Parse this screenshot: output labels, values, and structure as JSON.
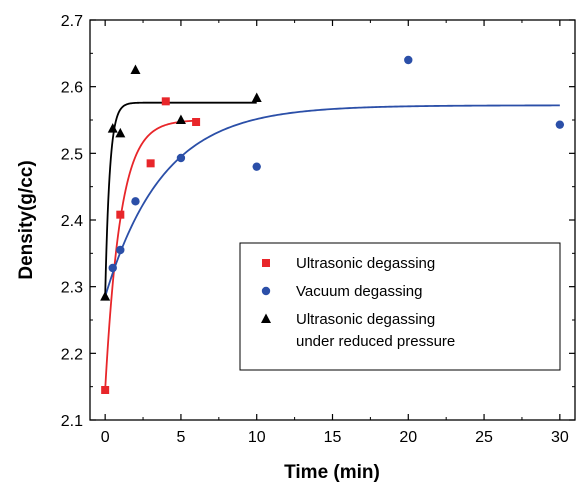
{
  "chart_data": {
    "type": "scatter",
    "title": "",
    "xlabel": "Time (min)",
    "ylabel": "Density(g/cc)",
    "xlim": [
      -1,
      31
    ],
    "ylim": [
      2.1,
      2.7
    ],
    "xticks": [
      0,
      5,
      10,
      15,
      20,
      25,
      30
    ],
    "yticks": [
      2.1,
      2.2,
      2.3,
      2.4,
      2.5,
      2.6,
      2.7
    ],
    "ytick_labels": [
      "2.1",
      "2.2",
      "2.3",
      "2.4",
      "2.5",
      "2.6",
      "2.7"
    ],
    "grid": false,
    "legend_position": "lower-right",
    "series": [
      {
        "name": "Ultrasonic degassing",
        "marker": "square",
        "color": "#e8262a",
        "points": [
          [
            0,
            2.145
          ],
          [
            1,
            2.408
          ],
          [
            3,
            2.485
          ],
          [
            4,
            2.578
          ],
          [
            6,
            2.547
          ]
        ],
        "fit": {
          "model": "exponential",
          "y0": 2.145,
          "plateau": 2.55,
          "tau": 1.0,
          "x_max": 6
        }
      },
      {
        "name": "Vacuum degassing",
        "marker": "circle",
        "color": "#2b4fa8",
        "points": [
          [
            0.5,
            2.328
          ],
          [
            1,
            2.355
          ],
          [
            2,
            2.428
          ],
          [
            5,
            2.493
          ],
          [
            10,
            2.48
          ],
          [
            20,
            2.64
          ],
          [
            30,
            2.543
          ]
        ],
        "fit": {
          "model": "exponential",
          "y0": 2.285,
          "plateau": 2.572,
          "tau": 3.8,
          "x_max": 30
        }
      },
      {
        "name_lines": [
          "Ultrasonic degassing",
          "under reduced pressure"
        ],
        "marker": "triangle",
        "color": "#000000",
        "points": [
          [
            0,
            2.285
          ],
          [
            0.5,
            2.537
          ],
          [
            1,
            2.53
          ],
          [
            2,
            2.625
          ],
          [
            5,
            2.55
          ],
          [
            10,
            2.583
          ]
        ],
        "fit": {
          "model": "exponential",
          "y0": 2.285,
          "plateau": 2.576,
          "tau": 0.3,
          "x_max": 10
        }
      }
    ]
  }
}
